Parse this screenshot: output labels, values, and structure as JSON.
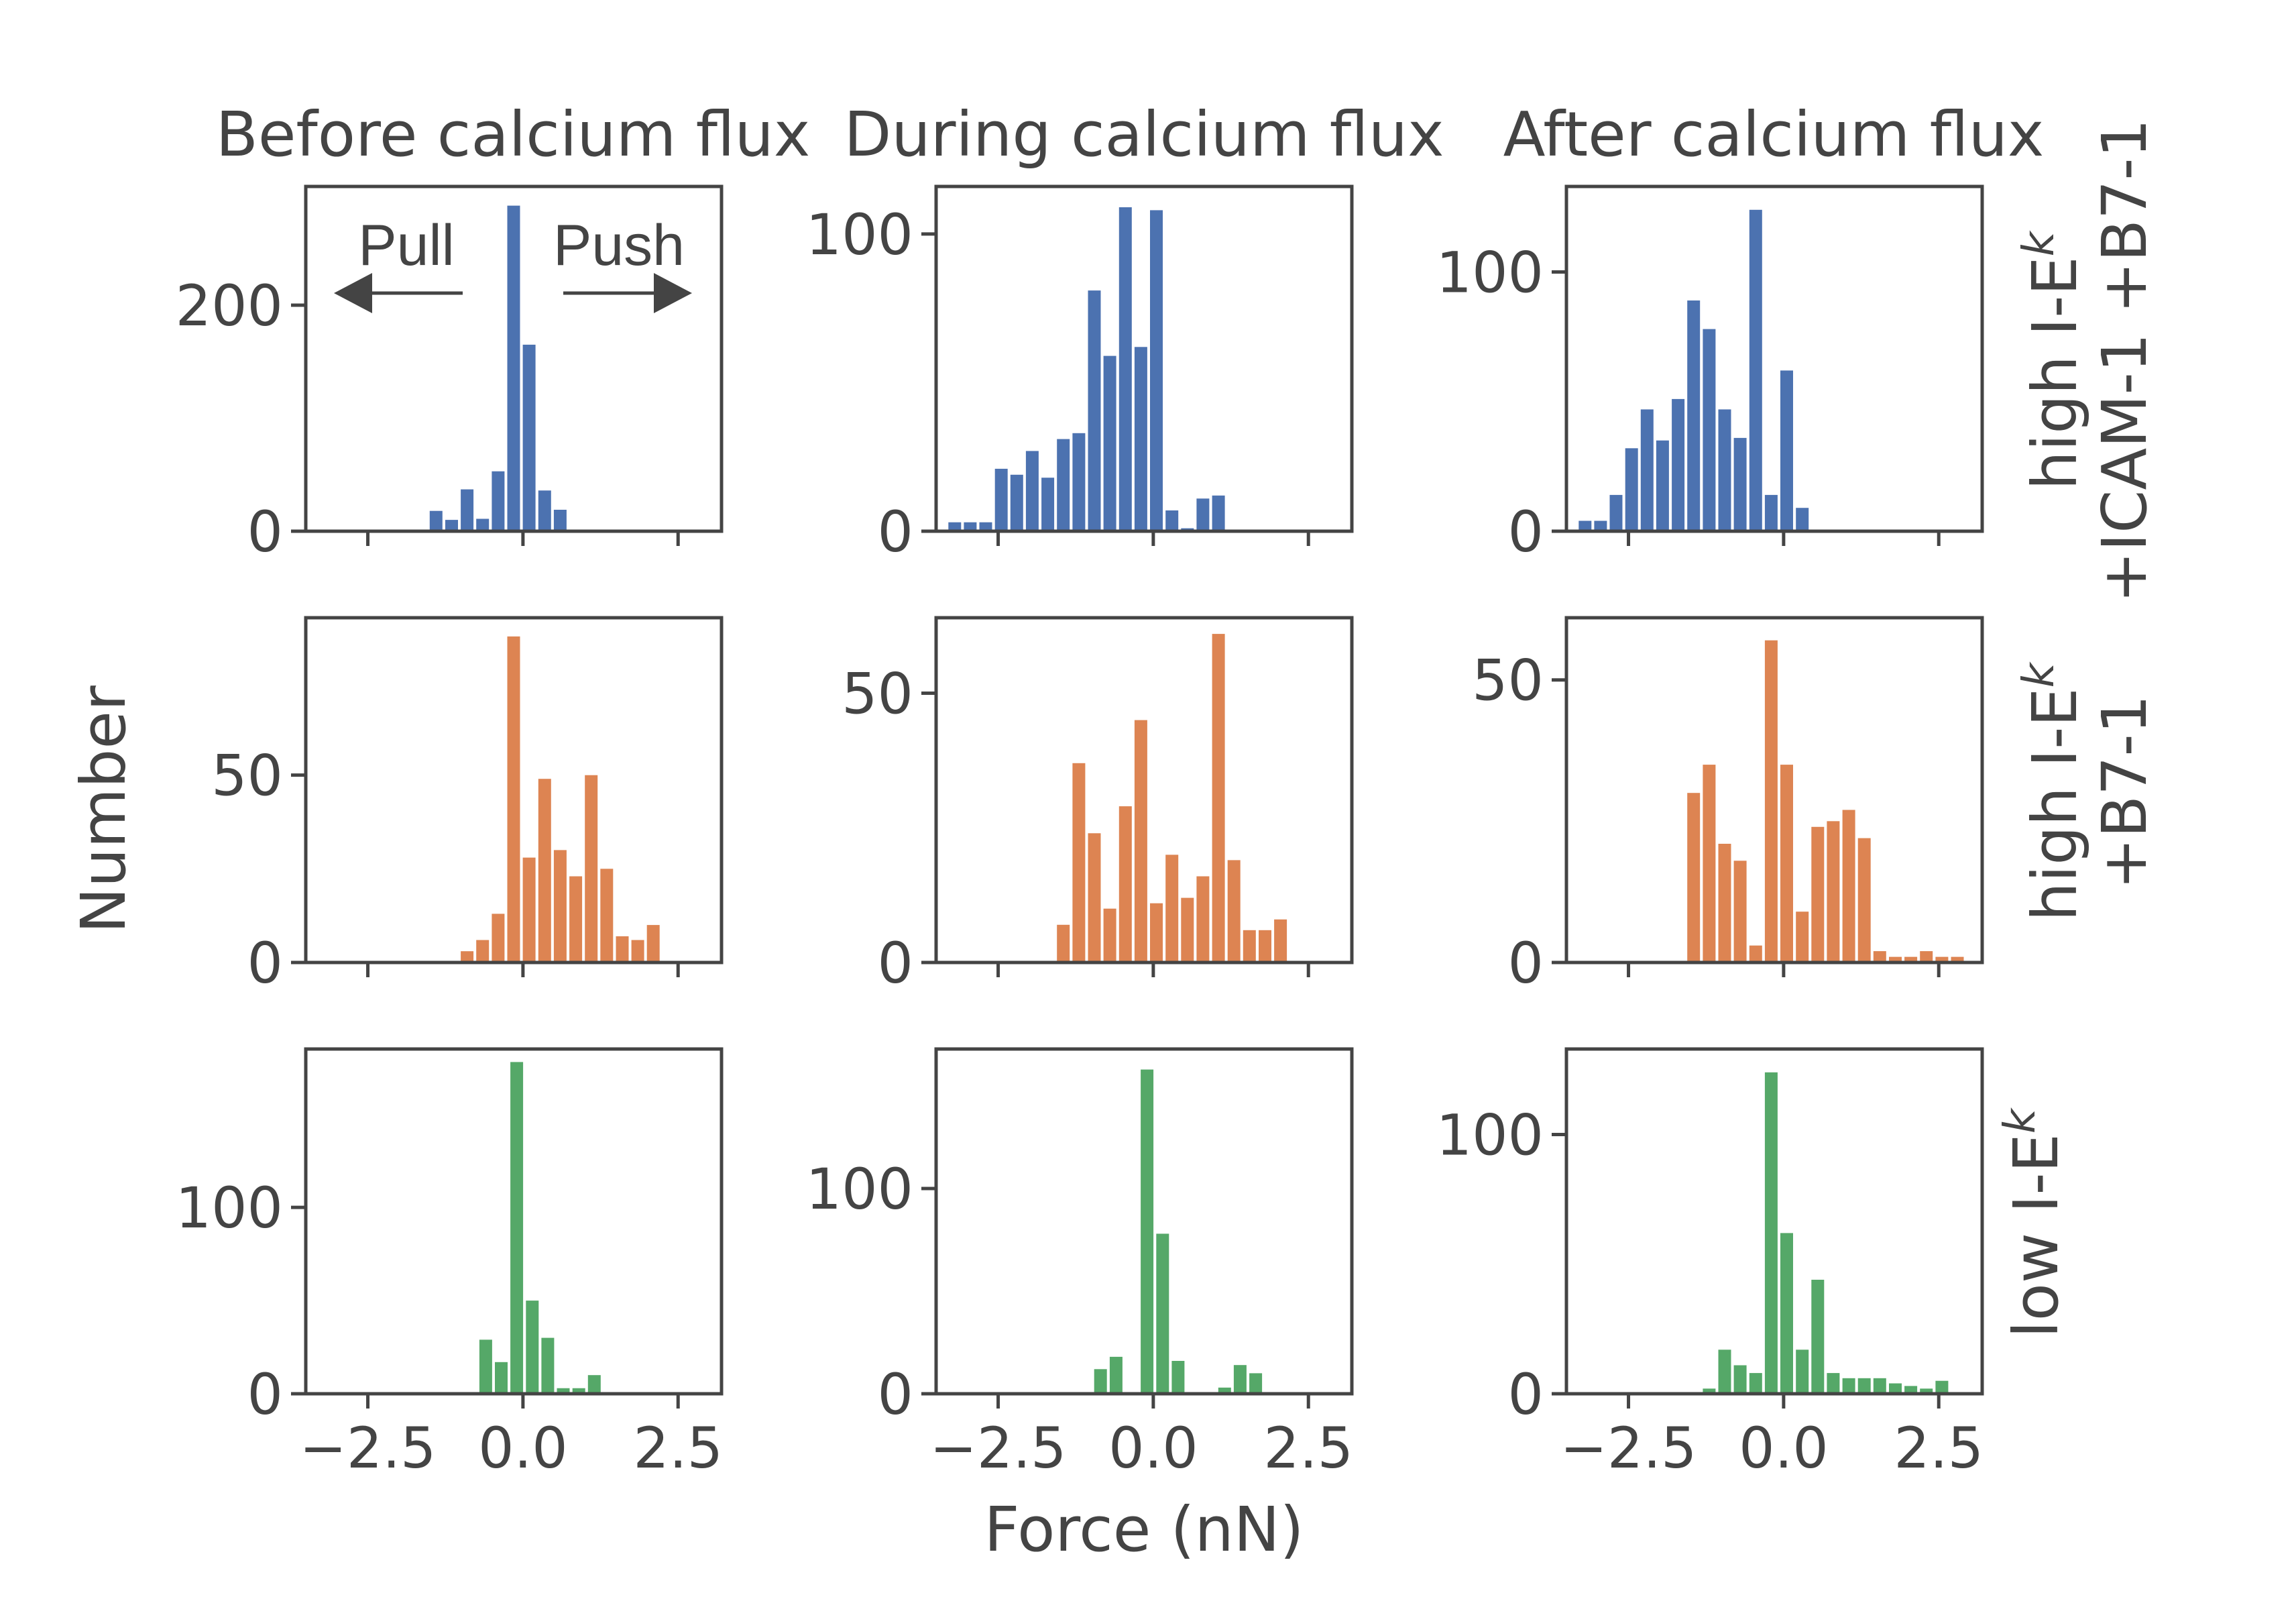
{
  "figure": {
    "ylabel": "Number",
    "xlabel": "Force (nN)",
    "column_titles": [
      "Before calcium flux",
      "During calcium flux",
      "After calcium flux"
    ],
    "annotations": {
      "pull": "Pull",
      "push": "Push"
    },
    "row_labels": [
      {
        "line1": "high I-E",
        "sup1": "k",
        "line2": "+ICAM-1 +B7-1",
        "color": "#4c72b0"
      },
      {
        "line1": "high I-E",
        "sup1": "k",
        "line2": "+B7-1",
        "color": "#dd8452"
      },
      {
        "line1": "low I-E",
        "sup1": "k",
        "line2": "",
        "color": "#55a868"
      }
    ],
    "xticks": [
      -2.5,
      0.0,
      2.5
    ],
    "xtick_labels": [
      "−2.5",
      "0.0",
      "2.5"
    ],
    "xlim": [
      -3.5,
      3.2
    ]
  },
  "chart_data": [
    {
      "type": "bar",
      "row": 0,
      "col": 0,
      "title": "Before calcium flux",
      "color": "#4c72b0",
      "ylim": [
        0,
        305
      ],
      "yticks": [
        0,
        200
      ],
      "x": [
        -1.4,
        -1.15,
        -0.9,
        -0.65,
        -0.4,
        -0.15,
        0.1,
        0.35,
        0.6
      ],
      "values": [
        18,
        10,
        37,
        11,
        53,
        288,
        165,
        36,
        19
      ]
    },
    {
      "type": "bar",
      "row": 0,
      "col": 1,
      "title": "During calcium flux",
      "color": "#4c72b0",
      "ylim": [
        0,
        116
      ],
      "yticks": [
        0,
        100
      ],
      "x": [
        -3.2,
        -2.95,
        -2.7,
        -2.45,
        -2.2,
        -1.95,
        -1.7,
        -1.45,
        -1.2,
        -0.95,
        -0.7,
        -0.45,
        -0.2,
        0.05,
        0.3,
        0.55,
        0.8,
        1.05,
        1.3
      ],
      "values": [
        3,
        3,
        3,
        21,
        19,
        27,
        18,
        31,
        33,
        81,
        59,
        109,
        62,
        108,
        7,
        1,
        11,
        12,
        0
      ]
    },
    {
      "type": "bar",
      "row": 0,
      "col": 2,
      "title": "After calcium flux",
      "color": "#4c72b0",
      "ylim": [
        0,
        133
      ],
      "yticks": [
        0,
        100
      ],
      "x": [
        -3.2,
        -2.95,
        -2.7,
        -2.45,
        -2.2,
        -1.95,
        -1.7,
        -1.45,
        -1.2,
        -0.95,
        -0.7,
        -0.45,
        -0.2,
        0.05,
        0.3
      ],
      "values": [
        4,
        4,
        14,
        32,
        47,
        35,
        51,
        89,
        78,
        47,
        36,
        124,
        14,
        62,
        9
      ]
    },
    {
      "type": "bar",
      "row": 1,
      "col": 0,
      "ylim": [
        0,
        92
      ],
      "yticks": [
        0,
        50
      ],
      "color": "#dd8452",
      "x": [
        -0.9,
        -0.65,
        -0.4,
        -0.15,
        0.1,
        0.35,
        0.6,
        0.85,
        1.1,
        1.35,
        1.6,
        1.85,
        2.1
      ],
      "values": [
        3,
        6,
        13,
        87,
        28,
        49,
        30,
        23,
        50,
        25,
        7,
        6,
        10
      ]
    },
    {
      "type": "bar",
      "row": 1,
      "col": 1,
      "ylim": [
        0,
        64
      ],
      "yticks": [
        0,
        50
      ],
      "color": "#dd8452",
      "x": [
        -1.45,
        -1.2,
        -0.95,
        -0.7,
        -0.45,
        -0.2,
        0.05,
        0.3,
        0.55,
        0.8,
        1.05,
        1.3,
        1.55,
        1.8,
        2.05
      ],
      "values": [
        7,
        37,
        24,
        10,
        29,
        45,
        11,
        20,
        12,
        16,
        61,
        19,
        6,
        6,
        8
      ]
    },
    {
      "type": "bar",
      "row": 1,
      "col": 2,
      "ylim": [
        0,
        61
      ],
      "yticks": [
        0,
        50
      ],
      "color": "#dd8452",
      "x": [
        -1.45,
        -1.2,
        -0.95,
        -0.7,
        -0.45,
        -0.2,
        0.05,
        0.3,
        0.55,
        0.8,
        1.05,
        1.3,
        1.55,
        1.8,
        2.05,
        2.3,
        2.55,
        2.8
      ],
      "values": [
        30,
        35,
        21,
        18,
        3,
        57,
        35,
        9,
        24,
        25,
        27,
        22,
        2,
        1,
        1,
        2,
        1,
        1
      ]
    },
    {
      "type": "bar",
      "row": 2,
      "col": 0,
      "ylim": [
        0,
        185
      ],
      "yticks": [
        0,
        100
      ],
      "color": "#55a868",
      "x": [
        -0.6,
        -0.35,
        -0.1,
        0.15,
        0.4,
        0.65,
        0.9,
        1.15
      ],
      "values": [
        29,
        17,
        178,
        50,
        30,
        3,
        3,
        10
      ]
    },
    {
      "type": "bar",
      "row": 2,
      "col": 1,
      "ylim": [
        0,
        168
      ],
      "yticks": [
        0,
        100
      ],
      "color": "#55a868",
      "x": [
        -0.85,
        -0.6,
        -0.35,
        -0.1,
        0.15,
        0.4,
        0.65,
        0.9,
        1.15,
        1.4,
        1.65
      ],
      "values": [
        12,
        18,
        0,
        158,
        78,
        16,
        0,
        0,
        3,
        14,
        10
      ]
    },
    {
      "type": "bar",
      "row": 2,
      "col": 2,
      "ylim": [
        0,
        133
      ],
      "yticks": [
        0,
        100
      ],
      "color": "#55a868",
      "x": [
        -1.2,
        -0.95,
        -0.7,
        -0.45,
        -0.2,
        0.05,
        0.3,
        0.55,
        0.8,
        1.05,
        1.3,
        1.55,
        1.8,
        2.05,
        2.3,
        2.55
      ],
      "values": [
        2,
        17,
        11,
        8,
        124,
        62,
        17,
        44,
        8,
        6,
        6,
        6,
        4,
        3,
        2,
        5
      ]
    }
  ]
}
